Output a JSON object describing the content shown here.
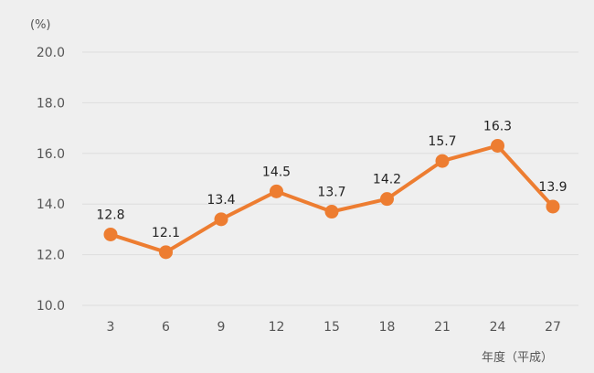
{
  "chart_data": {
    "type": "line",
    "title": "",
    "ylabel": "(%)",
    "xlabel": "年度（平成）",
    "categories": [
      "3",
      "6",
      "9",
      "12",
      "15",
      "18",
      "21",
      "24",
      "27"
    ],
    "series": [
      {
        "values": [
          12.8,
          12.1,
          13.4,
          14.5,
          13.7,
          14.2,
          15.7,
          16.3,
          13.9
        ],
        "color": "#ed7d31"
      }
    ],
    "ylim": [
      10.0,
      20.0
    ],
    "yticks": [
      "10.0",
      "12.0",
      "14.0",
      "16.0",
      "18.0",
      "20.0"
    ],
    "data_labels": [
      "12.8",
      "12.1",
      "13.4",
      "14.5",
      "13.7",
      "14.2",
      "15.7",
      "16.3",
      "13.9"
    ],
    "grid": true,
    "legend": "none",
    "colors": {
      "background": "#efefef",
      "grid": "#dddddd",
      "line": "#ed7d31"
    }
  }
}
